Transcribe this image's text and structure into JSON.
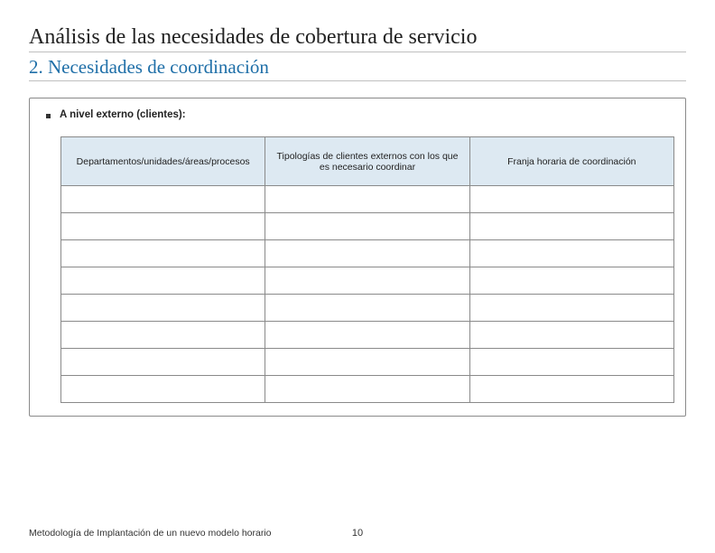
{
  "title": "Análisis de las necesidades de cobertura de servicio",
  "subtitle_text": "2. Necesidades de coordinación",
  "subtitle_color": "#1f6fa8",
  "bullet_text": "A nivel externo (clientes):",
  "table": {
    "header_bg": "#dde9f2",
    "columns": [
      "Departamentos/unidades/áreas/procesos",
      "Tipologías de clientes externos con los que es necesario coordinar",
      "Franja horaria de coordinación"
    ],
    "row_count": 8
  },
  "footer_text": "Metodología de Implantación de un nuevo modelo horario",
  "page_number": "10",
  "colors": {
    "border": "#8a8a8a",
    "rule": "#bfbfbf",
    "text": "#222222",
    "background": "#ffffff"
  }
}
